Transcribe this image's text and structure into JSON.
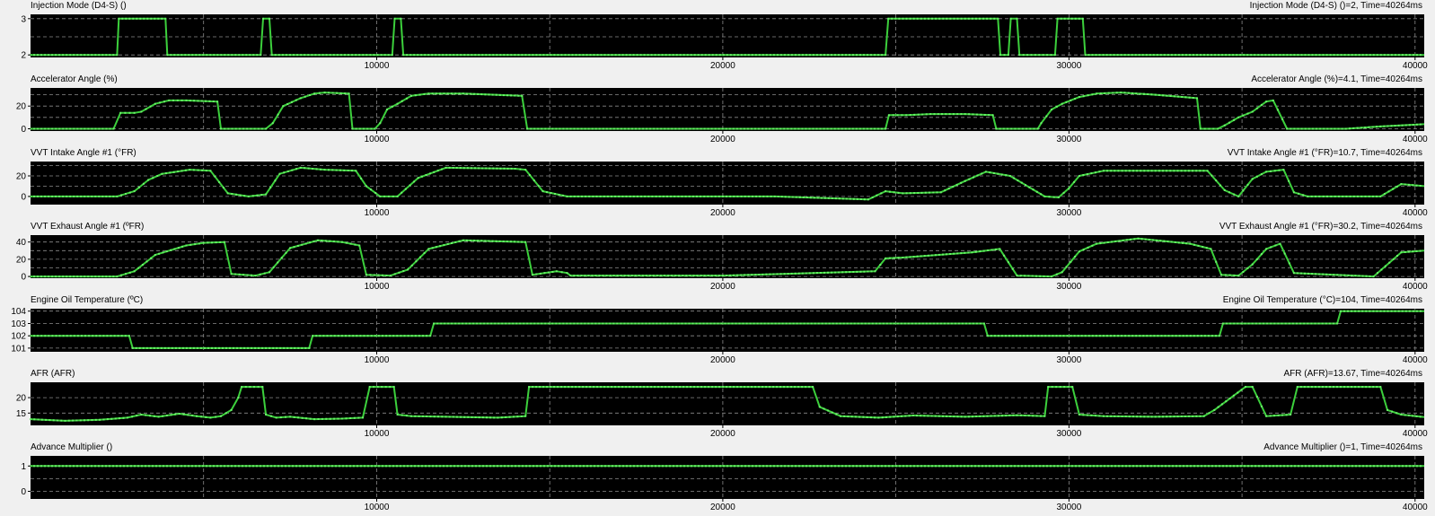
{
  "chart_data": [
    {
      "type": "line",
      "title": "Injection Mode (D4-S) ()",
      "readout": {
        "label": "Injection Mode (D4-S) ()=",
        "value": "2",
        "time": ", Time=40264ms"
      },
      "color": "#3cd03c",
      "ylim": [
        1.93,
        3.12
      ],
      "yticks": [
        "2",
        "3"
      ],
      "ytick_values": [
        2,
        3
      ],
      "ygrid": [
        2,
        2.5,
        3
      ],
      "xlim": [
        0,
        40264
      ],
      "xticks": [
        "10000",
        "20000",
        "30000",
        "40000"
      ],
      "xtick_values": [
        10000,
        20000,
        30000,
        40000
      ],
      "x": [
        0,
        2500,
        2550,
        3900,
        3950,
        6650,
        6720,
        6900,
        6970,
        10450,
        10520,
        10700,
        10770,
        24700,
        24780,
        27950,
        28020,
        28250,
        28320,
        28500,
        28570,
        29600,
        29670,
        30400,
        30470,
        40264
      ],
      "values": [
        2,
        2,
        3,
        3,
        2,
        2,
        3,
        3,
        2,
        2,
        3,
        3,
        2,
        2,
        3,
        3,
        2,
        2,
        3,
        3,
        2,
        2,
        3,
        3,
        2,
        2
      ]
    },
    {
      "type": "line",
      "title": "Accelerator Angle (%)",
      "readout": {
        "label": "Accelerator Angle (%)=",
        "value": "4.1",
        "time": ", Time=40264ms"
      },
      "color": "#3cd03c",
      "ylim": [
        -2,
        36
      ],
      "yticks": [
        "0",
        "20"
      ],
      "ytick_values": [
        0,
        20
      ],
      "ygrid": [
        0,
        10,
        20,
        30
      ],
      "xlim": [
        0,
        40264
      ],
      "xticks": [
        "10000",
        "20000",
        "30000",
        "40000"
      ],
      "xtick_values": [
        10000,
        20000,
        30000,
        40000
      ],
      "x": [
        0,
        2400,
        2600,
        3000,
        3200,
        3600,
        4000,
        4500,
        5400,
        5500,
        6800,
        7000,
        7300,
        7800,
        8200,
        8500,
        9200,
        9300,
        9950,
        10100,
        10300,
        10600,
        11000,
        11500,
        12500,
        14200,
        14350,
        24700,
        24800,
        25300,
        26000,
        27000,
        27800,
        27900,
        29100,
        29200,
        29500,
        29800,
        30300,
        30800,
        31500,
        32500,
        33700,
        33800,
        34300,
        34500,
        34900,
        35300,
        35700,
        35900,
        36300,
        38000,
        39000,
        40264
      ],
      "values": [
        0,
        0,
        14,
        14,
        15,
        22,
        25,
        25,
        24,
        0,
        0,
        5,
        20,
        27,
        31,
        32,
        31,
        0,
        0,
        5,
        17,
        22,
        29,
        31,
        31,
        29,
        0,
        0,
        12,
        12,
        13,
        13,
        12,
        0,
        0,
        5,
        17,
        22,
        28,
        31,
        32,
        30,
        27,
        0,
        0,
        3,
        10,
        15,
        24,
        25,
        0,
        0,
        2,
        4
      ]
    },
    {
      "type": "line",
      "title": "VVT Intake Angle #1 (°FR)",
      "readout": {
        "label": "VVT Intake Angle #1 (°FR)=",
        "value": "10.7",
        "time": ", Time=40264ms"
      },
      "color": "#3cd03c",
      "ylim": [
        -8,
        34
      ],
      "yticks": [
        "0",
        "20"
      ],
      "ytick_values": [
        0,
        20
      ],
      "ygrid": [
        0,
        10,
        20,
        30
      ],
      "xlim": [
        0,
        40264
      ],
      "xticks": [
        "10000",
        "20000",
        "30000",
        "40000"
      ],
      "xtick_values": [
        10000,
        20000,
        30000,
        40000
      ],
      "x": [
        0,
        2500,
        3000,
        3400,
        3800,
        4600,
        5200,
        5700,
        6300,
        6800,
        7200,
        7800,
        8500,
        9400,
        9700,
        10100,
        10600,
        11200,
        12000,
        14000,
        14300,
        14800,
        15500,
        18500,
        20000,
        21500,
        24200,
        24700,
        25200,
        26300,
        27000,
        27600,
        28300,
        29300,
        29700,
        30000,
        30300,
        31000,
        32500,
        34000,
        34500,
        34900,
        35300,
        35700,
        36200,
        36500,
        36900,
        37800,
        39000,
        39600,
        40264
      ],
      "values": [
        0,
        0,
        5,
        16,
        22,
        26,
        25,
        3,
        0,
        2,
        22,
        28,
        26,
        25,
        10,
        0,
        0,
        18,
        28,
        27,
        26,
        5,
        0,
        0,
        0,
        0,
        -3,
        5,
        3,
        4,
        15,
        24,
        20,
        0,
        -1,
        8,
        20,
        25,
        25,
        25,
        6,
        0,
        17,
        24,
        26,
        4,
        0,
        0,
        0,
        12,
        10
      ]
    },
    {
      "type": "line",
      "title": "VVT Exhaust Angle #1 (ºFR)",
      "readout": {
        "label": "VVT Exhaust Angle #1 (°FR)=",
        "value": "30.2",
        "time": ", Time=40264ms"
      },
      "color": "#3cd03c",
      "ylim": [
        -2,
        48
      ],
      "yticks": [
        "0",
        "20",
        "40"
      ],
      "ytick_values": [
        0,
        20,
        40
      ],
      "ygrid": [
        0,
        10,
        20,
        30,
        40
      ],
      "xlim": [
        0,
        40264
      ],
      "xticks": [
        "10000",
        "20000",
        "30000",
        "40000"
      ],
      "xtick_values": [
        10000,
        20000,
        30000,
        40000
      ],
      "x": [
        0,
        2500,
        3000,
        3600,
        4500,
        5000,
        5600,
        5800,
        6500,
        6900,
        7500,
        8300,
        9000,
        9500,
        9700,
        10400,
        10900,
        11500,
        12500,
        14300,
        14500,
        15200,
        15500,
        15600,
        18000,
        20000,
        24400,
        24700,
        25200,
        27200,
        28000,
        28500,
        29500,
        29800,
        30300,
        30800,
        32000,
        33500,
        34100,
        34400,
        34900,
        35300,
        35700,
        36100,
        36500,
        38800,
        39600,
        40264
      ],
      "values": [
        0,
        0,
        6,
        25,
        36,
        39,
        40,
        3,
        1,
        5,
        33,
        42,
        40,
        36,
        2,
        1,
        8,
        32,
        42,
        40,
        2,
        6,
        4,
        1,
        1,
        1,
        6,
        21,
        22,
        28,
        32,
        1,
        0,
        5,
        29,
        38,
        44,
        38,
        32,
        2,
        1,
        14,
        32,
        38,
        4,
        0,
        28,
        30
      ]
    },
    {
      "type": "line",
      "title": "Engine Oil Temperature (ºC)",
      "readout": {
        "label": "Engine Oil Temperature (°C)=",
        "value": "104",
        "time": ", Time=40264ms"
      },
      "color": "#3cd03c",
      "ylim": [
        100.7,
        104.2
      ],
      "yticks": [
        "101",
        "102",
        "103",
        "104"
      ],
      "ytick_values": [
        101,
        102,
        103,
        104
      ],
      "ygrid": [
        101,
        102,
        103,
        104
      ],
      "xlim": [
        0,
        40264
      ],
      "xticks": [
        "10000",
        "20000",
        "30000",
        "40000"
      ],
      "xtick_values": [
        10000,
        20000,
        30000,
        40000
      ],
      "x": [
        0,
        2850,
        2950,
        8050,
        8150,
        11550,
        11650,
        27550,
        27650,
        34350,
        34450,
        37750,
        37850,
        40264
      ],
      "values": [
        102,
        102,
        101,
        101,
        102,
        102,
        103,
        103,
        102,
        102,
        103,
        103,
        104,
        104
      ]
    },
    {
      "type": "line",
      "title": "AFR (AFR)",
      "readout": {
        "label": "AFR (AFR)=",
        "value": "13.67",
        "time": ", Time=40264ms"
      },
      "color": "#3cd03c",
      "ylim": [
        11,
        25
      ],
      "yticks": [
        "15",
        "20"
      ],
      "ytick_values": [
        15,
        20
      ],
      "ygrid": [
        15,
        20
      ],
      "xlim": [
        0,
        40264
      ],
      "xticks": [
        "10000",
        "20000",
        "30000",
        "40000"
      ],
      "xtick_values": [
        10000,
        20000,
        30000,
        40000
      ],
      "x": [
        0,
        1000,
        2000,
        2800,
        3200,
        3700,
        4300,
        4800,
        5200,
        5500,
        5800,
        6000,
        6100,
        6700,
        6800,
        7100,
        7500,
        8200,
        9000,
        9600,
        9800,
        10500,
        10600,
        11000,
        12000,
        13500,
        14300,
        14400,
        22600,
        22800,
        23400,
        24500,
        25500,
        27000,
        28500,
        29300,
        29400,
        30100,
        30300,
        31000,
        32500,
        33900,
        34200,
        35100,
        35300,
        35700,
        36400,
        36600,
        39000,
        39200,
        39600,
        40264
      ],
      "values": [
        13,
        12.5,
        12.8,
        13.5,
        14.5,
        13.8,
        14.8,
        14,
        13.5,
        14,
        16,
        20,
        23.5,
        23.5,
        14.5,
        13.5,
        13.8,
        13,
        13.2,
        13.5,
        23.5,
        23.5,
        14.5,
        14,
        13.8,
        13.5,
        14,
        23.5,
        23.5,
        17,
        14,
        13.5,
        14.2,
        13.8,
        14.3,
        14,
        23.5,
        23.5,
        14.5,
        14,
        13.8,
        14,
        16,
        23.5,
        23.5,
        14,
        14.5,
        23.5,
        23.5,
        16,
        14.5,
        13.67
      ]
    },
    {
      "type": "line",
      "title": "Advance Multiplier ()",
      "readout": {
        "label": "Advance Multiplier ()=",
        "value": "1",
        "time": ", Time=40264ms"
      },
      "color": "#3cd03c",
      "ylim": [
        -0.3,
        1.4
      ],
      "yticks": [
        "0",
        "1"
      ],
      "ytick_values": [
        0,
        1
      ],
      "ygrid": [
        0,
        0.5,
        1
      ],
      "xlim": [
        0,
        40264
      ],
      "xticks": [
        "10000",
        "20000",
        "30000",
        "40000"
      ],
      "xtick_values": [
        10000,
        20000,
        30000,
        40000
      ],
      "x": [
        0,
        40264
      ],
      "values": [
        1,
        1
      ]
    }
  ]
}
